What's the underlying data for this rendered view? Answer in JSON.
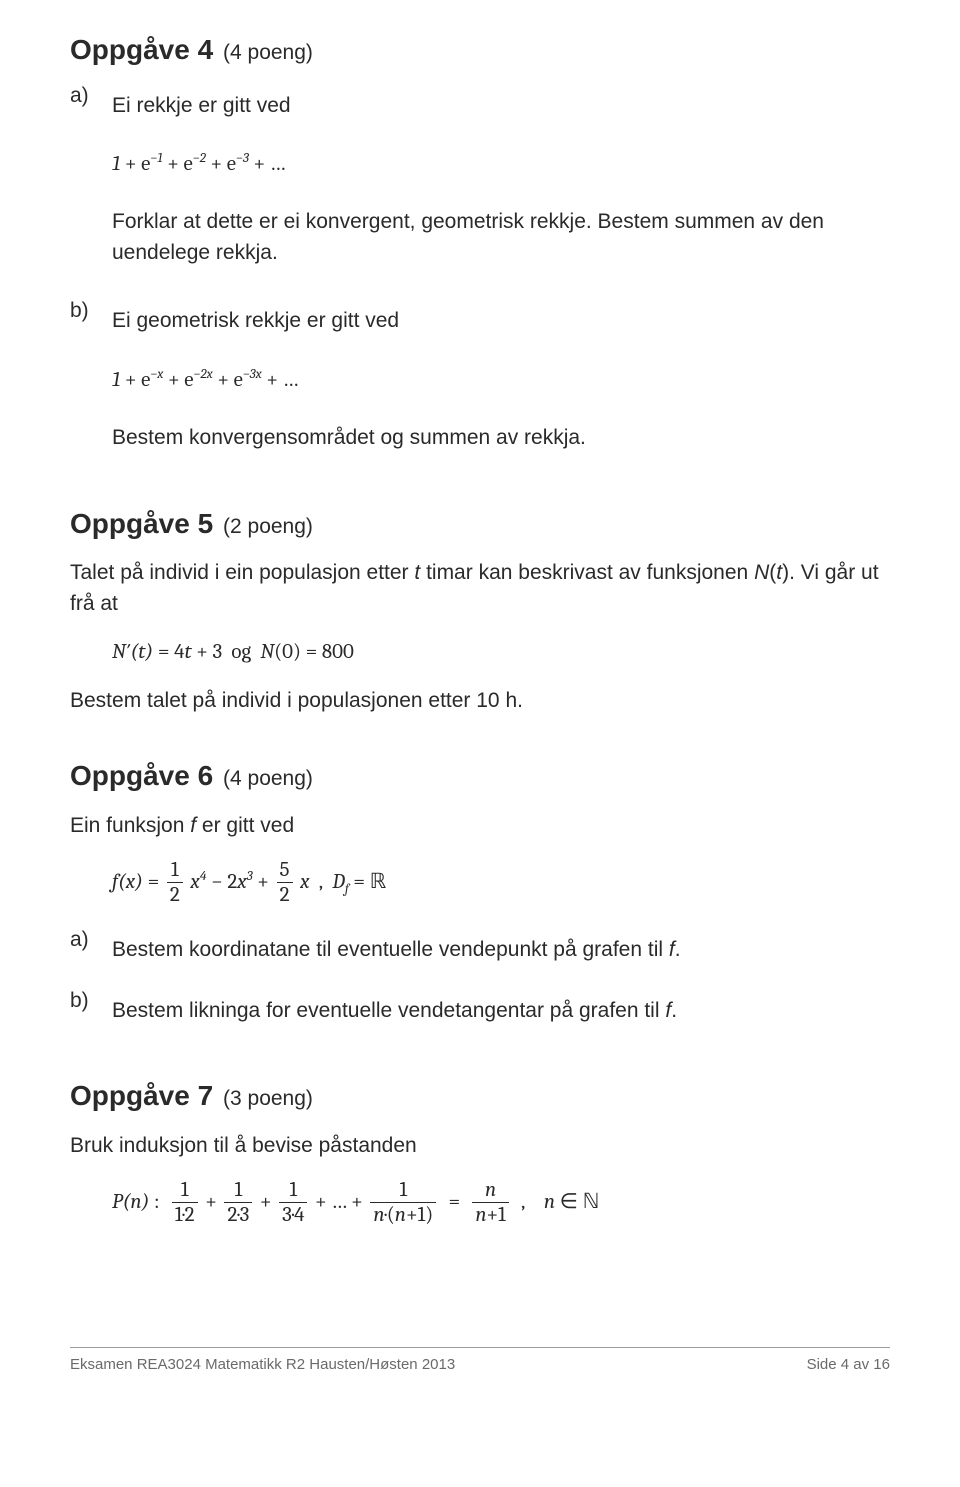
{
  "colors": {
    "text": "#2a2a2a",
    "footer_text": "#6a6a6a",
    "footer_rule": "#9a9a9a",
    "background": "#ffffff"
  },
  "typography": {
    "body_family": "Segoe UI / Arial",
    "body_size_pt": 16,
    "heading_size_pt": 21,
    "heading_weight": 700,
    "footer_size_pt": 11,
    "math_family": "Cambria / Georgia (serif, italic)"
  },
  "task4": {
    "heading": "Oppgåve 4",
    "points": "(4 poeng)",
    "a_letter": "a)",
    "a_text": "Ei rekkje er gitt ved",
    "a_formula_html": "1 <span class='up'>+ e</span><sup>−1</sup> <span class='up'>+ e</span><sup>−2</sup> <span class='up'>+ e</span><sup>−3</sup> <span class='up'>+ …</span>",
    "a_text2": "Forklar at dette er ei konvergent, geometrisk rekkje. Bestem summen av den uendelege rekkja.",
    "b_letter": "b)",
    "b_text": "Ei geometrisk rekkje er gitt ved",
    "b_formula_html": "1 <span class='up'>+ e</span><sup>−<i>x</i></sup> <span class='up'>+ e</span><sup>−2<i>x</i></sup> <span class='up'>+ e</span><sup>−3<i>x</i></sup> <span class='up'>+ …</span>",
    "b_text2": "Bestem konvergensområdet og summen av rekkja."
  },
  "task5": {
    "heading": "Oppgåve 5",
    "points": "(2 poeng)",
    "text1_html": "Talet på individ i ein populasjon etter <i>t</i> timar kan beskrivast av funksjonen <i>N</i>(<i>t</i>). Vi går ut frå at",
    "formula_html": "<i>N</i>′(<i>t</i>) <span class='up'>= 4</span><i>t</i> <span class='up'>+ 3</span>&nbsp;&nbsp;<span class='up'>og</span>&nbsp;&nbsp;<i>N</i><span class='up'>(0) = 800</span>",
    "text2": "Bestem talet på individ i populasjonen etter 10 h."
  },
  "task6": {
    "heading": "Oppgåve 6",
    "points": "(4 poeng)",
    "text1_html": "Ein funksjon <i>f</i> er gitt ved",
    "formula_html": "<span class='mline'><i>f</i>(<i>x</i>) <span class='up'>=</span> <span class='frac'><span class='num'>1</span><span class='den'>2</span></span> <i>x</i><sup>4</sup> <span class='up'>− 2</span><i>x</i><sup>3</sup> <span class='up'>+</span> <span class='frac'><span class='num'>5</span><span class='den'>2</span></span> <i>x</i>&nbsp;&nbsp;<span class='up'>,</span>&nbsp;&nbsp;<i>D<sub>f</sub></i> <span class='up'>=</span> <span class='bbsym'>ℝ</span></span>",
    "a_letter": "a)",
    "a_text_html": "Bestem koordinatane til eventuelle vendepunkt på grafen til <i>f</i>.",
    "b_letter": "b)",
    "b_text_html": "Bestem likninga for eventuelle vendetangentar på grafen til <i>f</i>."
  },
  "task7": {
    "heading": "Oppgåve 7",
    "points": "(3 poeng)",
    "text1": "Bruk induksjon til å bevise påstanden",
    "formula_html": "<span class='mline'><i>P</i>(<i>n</i>) <span class='up'>:</span>&nbsp;&nbsp;<span class='frac'><span class='num'>1</span><span class='den'>1·2</span></span> <span class='up'>+</span> <span class='frac'><span class='num'>1</span><span class='den'>2·3</span></span> <span class='up'>+</span> <span class='frac'><span class='num'>1</span><span class='den'>3·4</span></span> <span class='up'>+ … +</span> <span class='frac'><span class='num'>1</span><span class='den'><i>n</i>·(<i>n</i>+1)</span></span> <span class='up'>&nbsp;=&nbsp;</span> <span class='frac'><span class='num'><i>n</i></span><span class='den'><i>n</i>+1</span></span>&nbsp;&nbsp;<span class='up'>,</span>&nbsp;&nbsp;&nbsp;&nbsp;<i>n</i> <span class='up'>∈</span> <span class='bbsym'>ℕ</span></span>"
  },
  "footer": {
    "left": "Eksamen REA3024 Matematikk R2 Hausten/Høsten 2013",
    "right": "Side 4 av 16"
  }
}
